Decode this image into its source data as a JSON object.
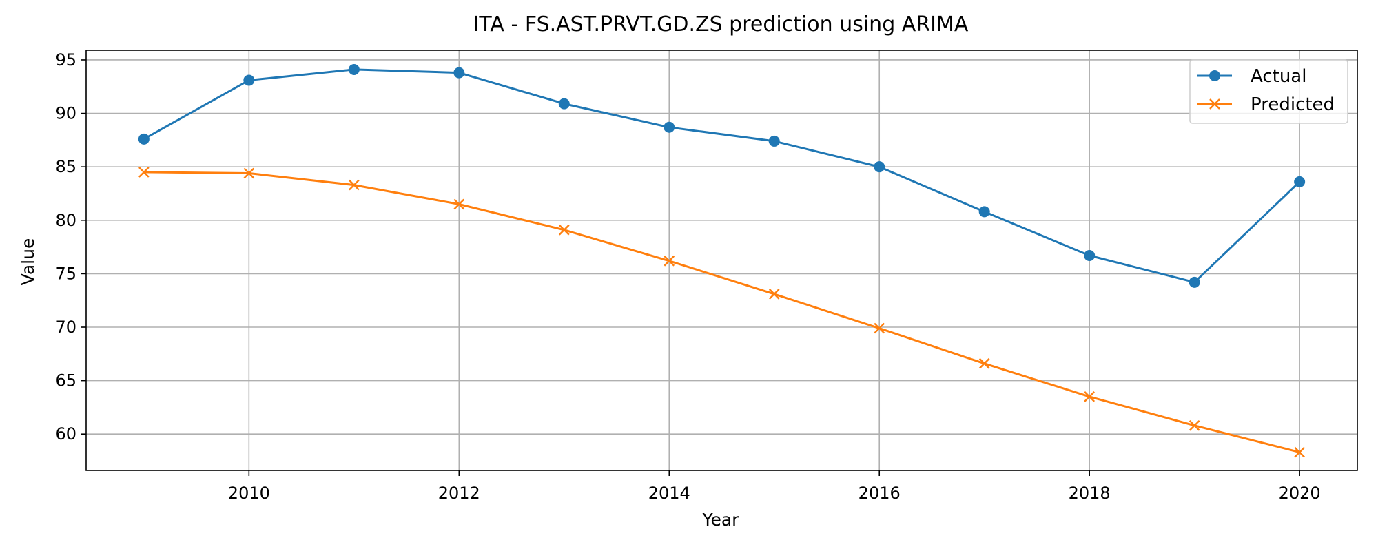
{
  "chart_data": {
    "type": "line",
    "title": "ITA - FS.AST.PRVT.GD.ZS prediction using ARIMA",
    "xlabel": "Year",
    "ylabel": "Value",
    "x": [
      2009,
      2010,
      2011,
      2012,
      2013,
      2014,
      2015,
      2016,
      2017,
      2018,
      2019,
      2020
    ],
    "xlim": [
      2008.45,
      2020.55
    ],
    "ylim": [
      56.6,
      95.9
    ],
    "xticks": [
      2010,
      2012,
      2014,
      2016,
      2018,
      2020
    ],
    "yticks": [
      60,
      65,
      70,
      75,
      80,
      85,
      90,
      95
    ],
    "grid": true,
    "legend_position": "top-right",
    "series": [
      {
        "name": "Actual",
        "color": "#1f77b4",
        "marker": "circle",
        "values": [
          87.6,
          93.1,
          94.1,
          93.8,
          90.9,
          88.7,
          87.4,
          85.0,
          80.8,
          76.7,
          74.2,
          83.6
        ]
      },
      {
        "name": "Predicted",
        "color": "#ff7f0e",
        "marker": "x",
        "values": [
          84.5,
          84.4,
          83.3,
          81.5,
          79.1,
          76.2,
          73.1,
          69.9,
          66.6,
          63.5,
          60.8,
          58.3
        ]
      }
    ]
  }
}
